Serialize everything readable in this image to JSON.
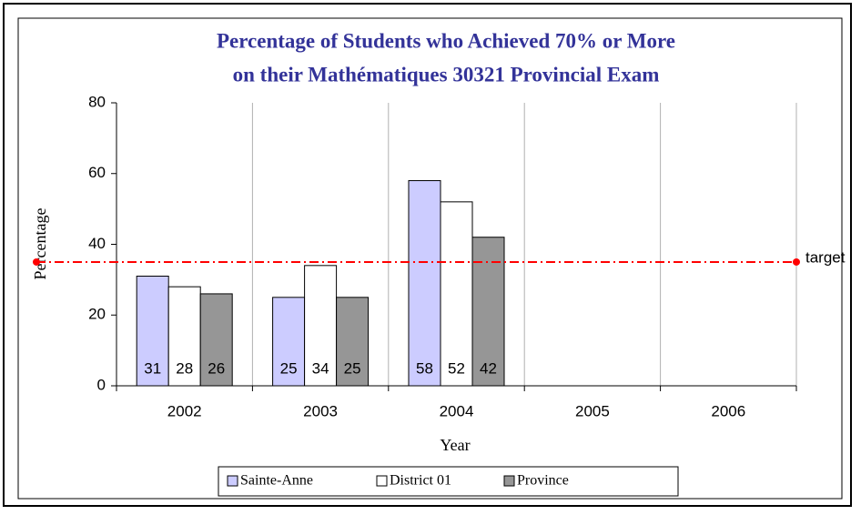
{
  "chart_data": {
    "type": "bar",
    "title": [
      "Percentage of Students who Achieved 70% or More",
      "on their Mathématiques 30321 Provincial Exam"
    ],
    "x_label": "Year",
    "y_label": "Percentage",
    "categories": [
      "2002",
      "2003",
      "2004",
      "2005",
      "2006"
    ],
    "series": [
      {
        "name": "Sainte-Anne",
        "color": "#ccccff",
        "values": [
          31,
          25,
          58,
          null,
          null
        ]
      },
      {
        "name": "District 01",
        "color": "#ffffff",
        "values": [
          28,
          34,
          52,
          null,
          null
        ]
      },
      {
        "name": "Province",
        "color": "#969696",
        "values": [
          26,
          25,
          42,
          null,
          null
        ]
      }
    ],
    "ylim": [
      0,
      80
    ],
    "yticks": [
      0,
      20,
      40,
      60,
      80
    ],
    "grid": true,
    "target": {
      "value": 35,
      "label": "target",
      "color": "#ff0000"
    },
    "legend": "bottom"
  }
}
